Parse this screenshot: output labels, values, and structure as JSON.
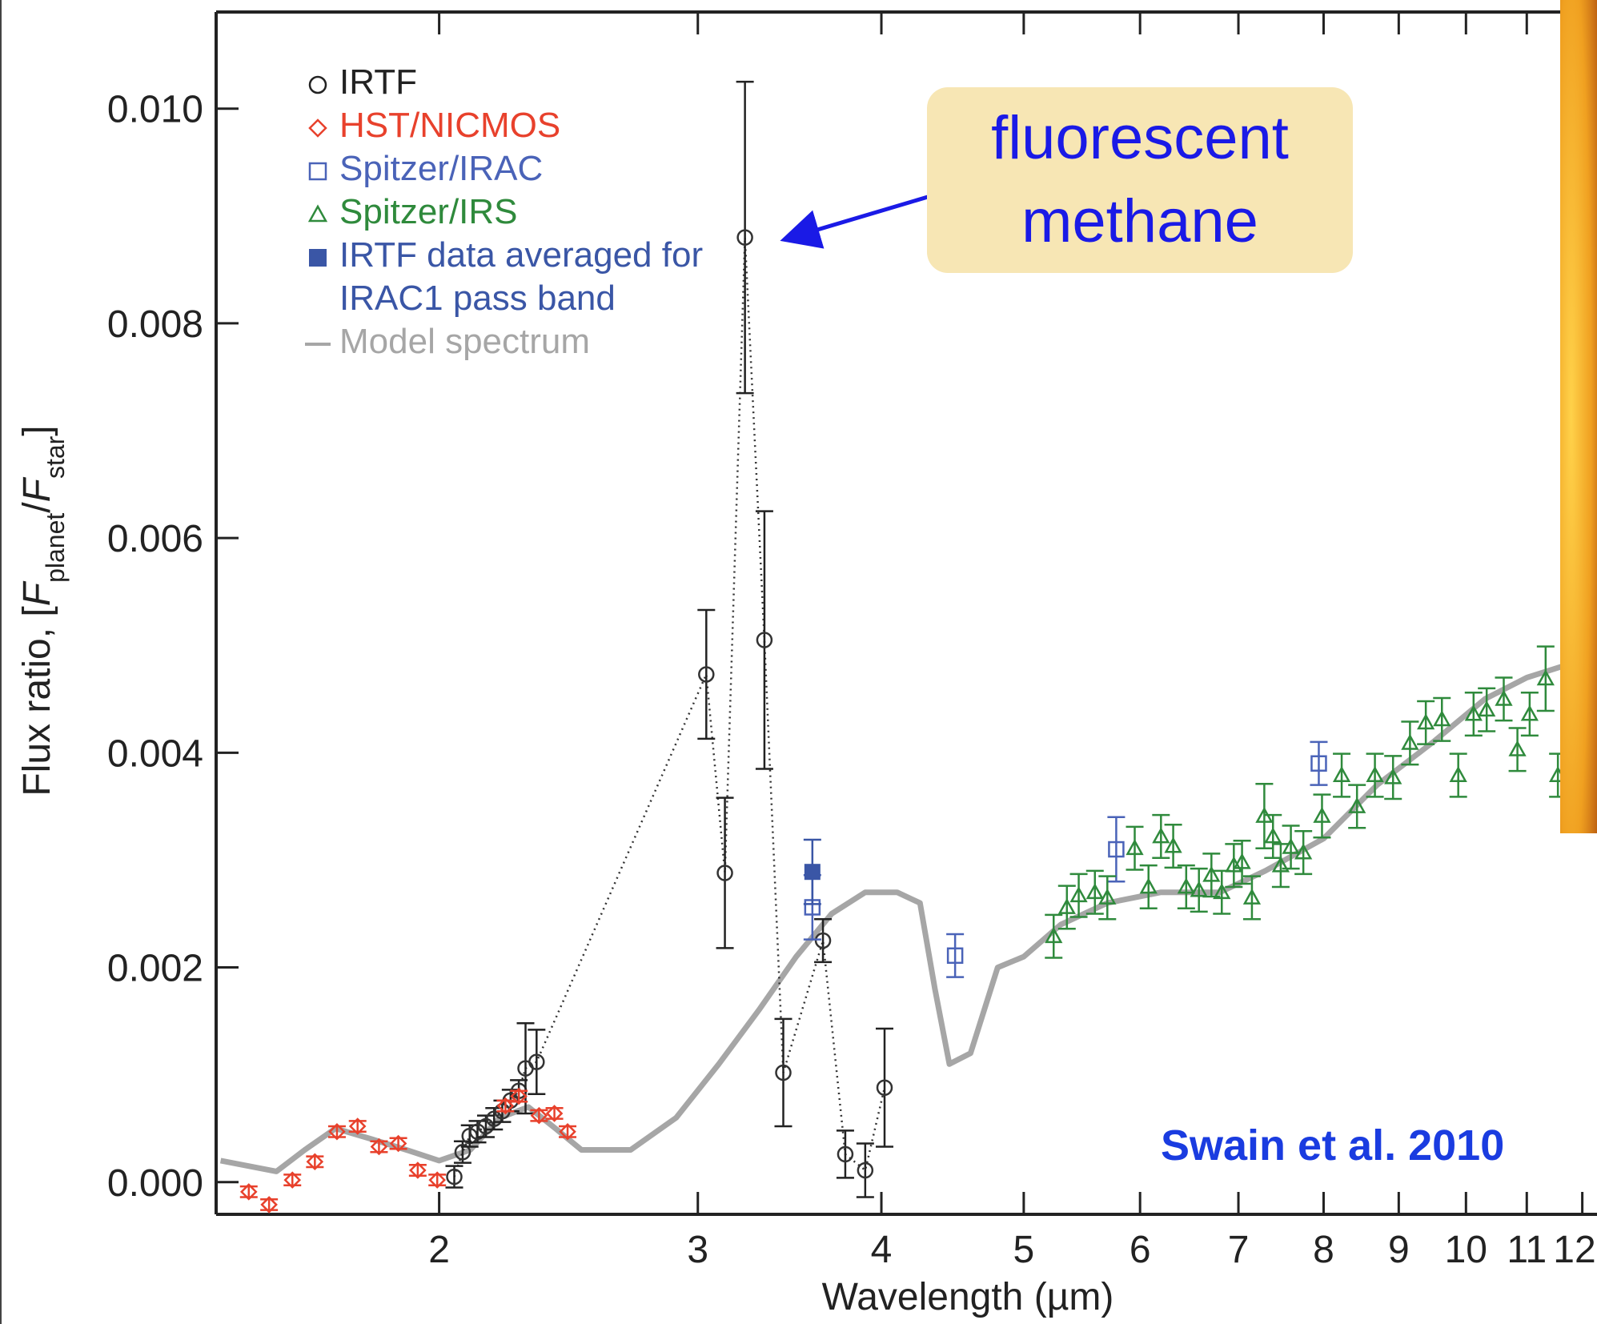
{
  "chart_data": {
    "type": "scatter",
    "xlabel": "Wavelength (µm)",
    "ylabel_parts": [
      "Flux ratio, [",
      "F",
      "planet",
      "/",
      "F",
      "star",
      "]"
    ],
    "xscale": "log",
    "xlim": [
      1.41,
      12.28
    ],
    "ylim": [
      -0.0003,
      0.0109
    ],
    "xticks": [
      2,
      3,
      4,
      5,
      6,
      7,
      8,
      9,
      10,
      11,
      12
    ],
    "yticks": [
      {
        "value": 0,
        "label": "0.000"
      },
      {
        "value": 0.002,
        "label": "0.002"
      },
      {
        "value": 0.004,
        "label": "0.004"
      },
      {
        "value": 0.006,
        "label": "0.006"
      },
      {
        "value": 0.008,
        "label": "0.008"
      },
      {
        "value": 0.01,
        "label": "0.010"
      }
    ],
    "annotation": [
      "fluorescent",
      "methane"
    ],
    "credit": "Swain et al. 2010",
    "series": [
      {
        "name": "IRTF",
        "color": "#333333",
        "marker": "circle",
        "x": [
          2.048,
          2.075,
          2.098,
          2.124,
          2.152,
          2.18,
          2.208,
          2.237,
          2.266,
          2.29,
          2.33,
          3.04,
          3.13,
          3.23,
          3.33,
          3.43,
          3.65,
          3.78,
          3.9,
          4.02
        ],
        "values": [
          5e-05,
          0.00028,
          0.00043,
          0.00047,
          0.00052,
          0.00059,
          0.00066,
          0.00076,
          0.00085,
          0.00106,
          0.00112,
          0.00473,
          0.00288,
          0.0088,
          0.00505,
          0.00102,
          0.00225,
          0.00026,
          0.00011,
          0.00088
        ],
        "errors": [
          0.0001,
          0.0001,
          0.0001,
          0.0001,
          0.0001,
          0.0001,
          0.0001,
          0.0001,
          0.0001,
          0.00042,
          0.0003,
          0.0006,
          0.0007,
          0.00145,
          0.0012,
          0.0005,
          0.0002,
          0.00022,
          0.00025,
          0.00055
        ]
      },
      {
        "name": "HST/NICMOS",
        "color": "#e8412c",
        "marker": "diamond",
        "x": [
          1.484,
          1.532,
          1.589,
          1.646,
          1.704,
          1.76,
          1.82,
          1.876,
          1.934,
          1.994,
          2.219,
          2.266,
          2.339,
          2.396,
          2.446
        ],
        "values": [
          -9e-05,
          -0.00021,
          2e-05,
          0.00019,
          0.00047,
          0.00052,
          0.00033,
          0.00036,
          0.00011,
          2e-05,
          0.00071,
          0.0008,
          0.00062,
          0.00064,
          0.00047
        ],
        "errors": [
          5e-05,
          5e-05,
          5e-05,
          5e-05,
          5e-05,
          5e-05,
          5e-05,
          5e-05,
          5e-05,
          5e-05,
          5e-05,
          5e-05,
          5e-05,
          5e-05,
          5e-05
        ]
      },
      {
        "name": "Spitzer/IRAC",
        "color": "#4a63b8",
        "marker": "square",
        "x": [
          3.59,
          4.49,
          5.78,
          7.94
        ],
        "values": [
          0.00256,
          0.00211,
          0.0031,
          0.0039
        ],
        "errors": [
          0.0003,
          0.0002,
          0.0003,
          0.0002
        ]
      },
      {
        "name": "Spitzer/IRS",
        "color": "#2f8a3c",
        "marker": "triangle",
        "x": [
          5.24,
          5.35,
          5.45,
          5.59,
          5.7,
          5.95,
          6.08,
          6.2,
          6.32,
          6.45,
          6.58,
          6.71,
          6.82,
          6.95,
          7.04,
          7.15,
          7.29,
          7.39,
          7.48,
          7.6,
          7.75,
          7.98,
          8.23,
          8.43,
          8.67,
          8.92,
          9.16,
          9.39,
          9.63,
          9.88,
          10.12,
          10.33,
          10.61,
          10.84,
          11.05,
          11.33,
          11.55
        ],
        "values": [
          0.00229,
          0.00256,
          0.00267,
          0.0027,
          0.00265,
          0.00311,
          0.00275,
          0.00322,
          0.00313,
          0.00275,
          0.00272,
          0.00286,
          0.0027,
          0.00295,
          0.00298,
          0.00265,
          0.00341,
          0.00322,
          0.00295,
          0.00312,
          0.00307,
          0.00341,
          0.00379,
          0.0035,
          0.00379,
          0.00377,
          0.00409,
          0.00428,
          0.00431,
          0.00379,
          0.00436,
          0.0044,
          0.0045,
          0.00403,
          0.00436,
          0.00469,
          0.00379
        ],
        "errors": [
          0.0002,
          0.0002,
          0.0002,
          0.0002,
          0.0002,
          0.0002,
          0.0002,
          0.0002,
          0.0002,
          0.0002,
          0.0002,
          0.0002,
          0.0002,
          0.0002,
          0.0002,
          0.0002,
          0.0003,
          0.0002,
          0.0002,
          0.0002,
          0.0002,
          0.0002,
          0.0002,
          0.0002,
          0.0002,
          0.0002,
          0.0002,
          0.0002,
          0.0002,
          0.0002,
          0.0002,
          0.0002,
          0.0002,
          0.0002,
          0.0002,
          0.0003,
          0.0002
        ]
      },
      {
        "name": "IRTF data averaged for IRAC1 pass band",
        "color": "#3a56a6",
        "marker": "square-filled",
        "x": [
          3.59
        ],
        "values": [
          0.00289
        ],
        "errors": [
          0.0003
        ]
      },
      {
        "name": "Model spectrum",
        "color": "#a6a6a6",
        "marker": "line",
        "x": [
          1.42,
          1.55,
          1.62,
          1.7,
          1.8,
          1.9,
          2.0,
          2.1,
          2.2,
          2.3,
          2.4,
          2.5,
          2.7,
          2.9,
          3.1,
          3.3,
          3.5,
          3.7,
          3.9,
          4.1,
          4.25,
          4.35,
          4.45,
          4.6,
          4.8,
          5.0,
          5.3,
          5.7,
          6.2,
          6.8,
          7.3,
          8.0,
          8.7,
          9.5,
          10.3,
          11.0,
          11.6,
          12.2
        ],
        "values": [
          0.0002,
          0.0001,
          0.0003,
          0.0005,
          0.0004,
          0.0003,
          0.0002,
          0.0003,
          0.0006,
          0.0007,
          0.0005,
          0.0003,
          0.0003,
          0.0006,
          0.0011,
          0.0016,
          0.0021,
          0.0025,
          0.0027,
          0.0027,
          0.0026,
          0.0018,
          0.0011,
          0.0012,
          0.002,
          0.0021,
          0.0024,
          0.0026,
          0.0027,
          0.0027,
          0.0029,
          0.0032,
          0.0037,
          0.0041,
          0.0045,
          0.0047,
          0.0048,
          0.0049
        ]
      }
    ]
  }
}
